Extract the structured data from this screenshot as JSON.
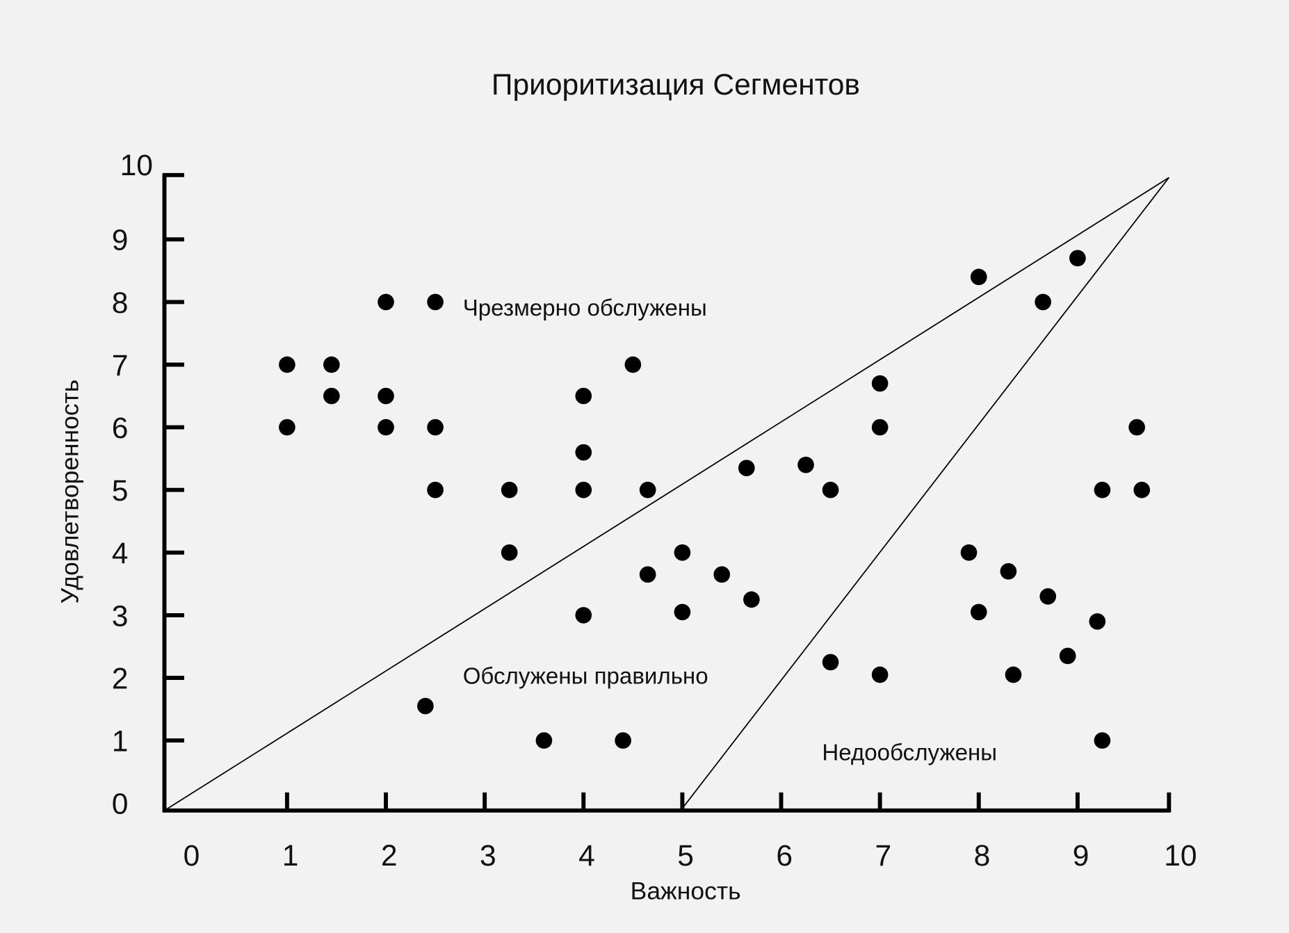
{
  "chart_data": {
    "type": "scatter",
    "title": "Приоритизация  Сегментов",
    "xlabel": "Важность",
    "ylabel": "Удовлетворенность",
    "xlim": [
      0,
      10
    ],
    "ylim": [
      0,
      10
    ],
    "xticks": [
      "0",
      "1",
      "2",
      "3",
      "4",
      "5",
      "6",
      "7",
      "8",
      "9",
      "10"
    ],
    "yticks": [
      "0",
      "1",
      "2",
      "3",
      "4",
      "5",
      "6",
      "7",
      "8",
      "9",
      "10"
    ],
    "grid": false,
    "point_color": "#000000",
    "regions": {
      "over": "Чрезмерно обслужены",
      "right": "Обслужены правильно",
      "under": "Недообслужены"
    },
    "boundary_lines": [
      {
        "from": [
          0,
          0
        ],
        "to": [
          10,
          10
        ]
      },
      {
        "from": [
          5,
          0
        ],
        "to": [
          10,
          10
        ]
      }
    ],
    "points": [
      [
        1,
        7
      ],
      [
        1,
        6
      ],
      [
        1.45,
        7
      ],
      [
        1.45,
        6.5
      ],
      [
        2,
        8
      ],
      [
        2,
        6.5
      ],
      [
        2,
        6
      ],
      [
        2.5,
        8
      ],
      [
        2.5,
        6
      ],
      [
        2.5,
        5
      ],
      [
        3.25,
        5
      ],
      [
        3.25,
        4
      ],
      [
        4,
        6.5
      ],
      [
        4,
        5.6
      ],
      [
        4,
        5
      ],
      [
        4.5,
        7
      ],
      [
        4.65,
        5
      ],
      [
        4.65,
        3.65
      ],
      [
        4,
        3
      ],
      [
        2.4,
        1.55
      ],
      [
        3.6,
        1
      ],
      [
        4.4,
        1
      ],
      [
        5,
        4
      ],
      [
        5,
        3.05
      ],
      [
        5.4,
        3.65
      ],
      [
        5.7,
        3.25
      ],
      [
        5.65,
        5.35
      ],
      [
        6.25,
        5.4
      ],
      [
        6.5,
        5
      ],
      [
        7,
        6.7
      ],
      [
        7,
        6
      ],
      [
        6.5,
        2.25
      ],
      [
        7,
        2.05
      ],
      [
        8,
        8.4
      ],
      [
        8.65,
        8
      ],
      [
        9,
        8.7
      ],
      [
        9.6,
        6
      ],
      [
        9.25,
        5
      ],
      [
        9.65,
        5
      ],
      [
        7.9,
        4
      ],
      [
        8,
        3.05
      ],
      [
        8.3,
        3.7
      ],
      [
        8.7,
        3.3
      ],
      [
        8.35,
        2.05
      ],
      [
        8.9,
        2.35
      ],
      [
        9.2,
        2.9
      ],
      [
        9.25,
        1
      ]
    ]
  }
}
